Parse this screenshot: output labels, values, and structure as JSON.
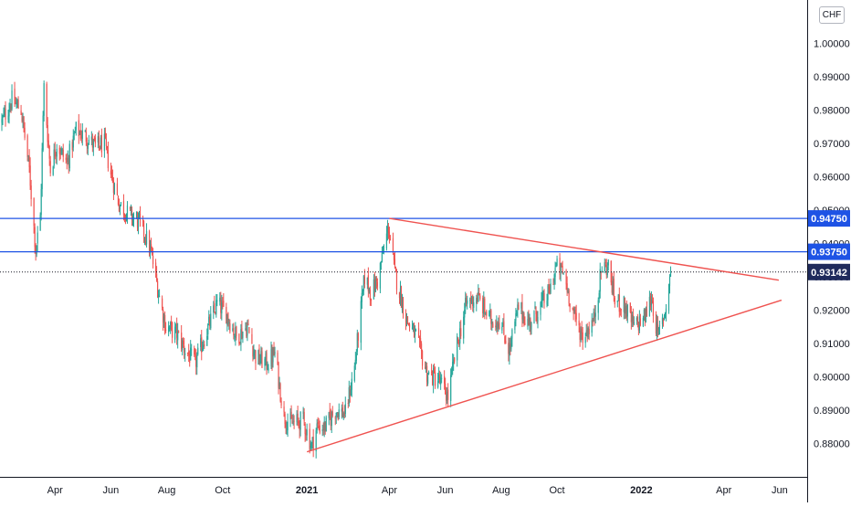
{
  "currency": "CHF",
  "chart_data": {
    "type": "candlestick",
    "y_axis": {
      "range": [
        0.87,
        1.013
      ],
      "ticks": [
        "0.88000",
        "0.89000",
        "0.90000",
        "0.91000",
        "0.92000",
        "0.93000",
        "0.94000",
        "0.95000",
        "0.96000",
        "0.97000",
        "0.98000",
        "0.99000",
        "1.00000"
      ]
    },
    "x_axis": {
      "range": [
        "2020-02-01",
        "2022-07-01"
      ],
      "ticks": [
        {
          "label": "Apr",
          "date": "2020-04-01",
          "bold": false
        },
        {
          "label": "Jun",
          "date": "2020-06-01",
          "bold": false
        },
        {
          "label": "Aug",
          "date": "2020-08-01",
          "bold": false
        },
        {
          "label": "Oct",
          "date": "2020-10-01",
          "bold": false
        },
        {
          "label": "2021",
          "date": "2021-01-01",
          "bold": true
        },
        {
          "label": "Apr",
          "date": "2021-04-01",
          "bold": false
        },
        {
          "label": "Jun",
          "date": "2021-06-01",
          "bold": false
        },
        {
          "label": "Aug",
          "date": "2021-08-01",
          "bold": false
        },
        {
          "label": "Oct",
          "date": "2021-10-01",
          "bold": false
        },
        {
          "label": "2022",
          "date": "2022-01-01",
          "bold": true
        },
        {
          "label": "Apr",
          "date": "2022-04-01",
          "bold": false
        },
        {
          "label": "Jun",
          "date": "2022-06-01",
          "bold": false
        }
      ]
    },
    "close_path": [
      [
        "2020-02-03",
        0.9765
      ],
      [
        "2020-02-14",
        0.983
      ],
      [
        "2020-02-24",
        0.98
      ],
      [
        "2020-03-04",
        0.962
      ],
      [
        "2020-03-11",
        0.938
      ],
      [
        "2020-03-16",
        0.948
      ],
      [
        "2020-03-20",
        0.987
      ],
      [
        "2020-03-27",
        0.962
      ],
      [
        "2020-04-03",
        0.97
      ],
      [
        "2020-04-14",
        0.964
      ],
      [
        "2020-04-24",
        0.974
      ],
      [
        "2020-05-05",
        0.972
      ],
      [
        "2020-05-15",
        0.969
      ],
      [
        "2020-05-25",
        0.97
      ],
      [
        "2020-06-01",
        0.961
      ],
      [
        "2020-06-10",
        0.952
      ],
      [
        "2020-06-19",
        0.949
      ],
      [
        "2020-06-30",
        0.947
      ],
      [
        "2020-07-08",
        0.943
      ],
      [
        "2020-07-15",
        0.937
      ],
      [
        "2020-07-24",
        0.924
      ],
      [
        "2020-07-31",
        0.915
      ],
      [
        "2020-08-12",
        0.913
      ],
      [
        "2020-08-21",
        0.908
      ],
      [
        "2020-09-01",
        0.904
      ],
      [
        "2020-09-10",
        0.911
      ],
      [
        "2020-09-25",
        0.922
      ],
      [
        "2020-10-05",
        0.919
      ],
      [
        "2020-10-16",
        0.912
      ],
      [
        "2020-10-28",
        0.915
      ],
      [
        "2020-11-06",
        0.906
      ],
      [
        "2020-11-18",
        0.904
      ],
      [
        "2020-11-27",
        0.907
      ],
      [
        "2020-12-07",
        0.888
      ],
      [
        "2020-12-15",
        0.886
      ],
      [
        "2020-12-28",
        0.887
      ],
      [
        "2021-01-06",
        0.879
      ],
      [
        "2021-01-12",
        0.885
      ],
      [
        "2021-01-21",
        0.885
      ],
      [
        "2021-02-01",
        0.89
      ],
      [
        "2021-02-12",
        0.889
      ],
      [
        "2021-02-22",
        0.903
      ],
      [
        "2021-03-05",
        0.93
      ],
      [
        "2021-03-12",
        0.925
      ],
      [
        "2021-03-19",
        0.929
      ],
      [
        "2021-03-31",
        0.945
      ],
      [
        "2021-04-07",
        0.931
      ],
      [
        "2021-04-20",
        0.917
      ],
      [
        "2021-04-30",
        0.912
      ],
      [
        "2021-05-12",
        0.901
      ],
      [
        "2021-05-25",
        0.899
      ],
      [
        "2021-06-04",
        0.894
      ],
      [
        "2021-06-12",
        0.907
      ],
      [
        "2021-06-24",
        0.922
      ],
      [
        "2021-07-06",
        0.924
      ],
      [
        "2021-07-20",
        0.917
      ],
      [
        "2021-07-30",
        0.917
      ],
      [
        "2021-08-10",
        0.908
      ],
      [
        "2021-08-20",
        0.921
      ],
      [
        "2021-08-31",
        0.916
      ],
      [
        "2021-09-10",
        0.92
      ],
      [
        "2021-09-22",
        0.925
      ],
      [
        "2021-09-30",
        0.933
      ],
      [
        "2021-10-08",
        0.931
      ],
      [
        "2021-10-20",
        0.918
      ],
      [
        "2021-10-29",
        0.912
      ],
      [
        "2021-11-10",
        0.917
      ],
      [
        "2021-11-19",
        0.933
      ],
      [
        "2021-11-26",
        0.933
      ],
      [
        "2021-12-03",
        0.923
      ],
      [
        "2021-12-14",
        0.921
      ],
      [
        "2021-12-24",
        0.915
      ],
      [
        "2022-01-05",
        0.918
      ],
      [
        "2022-01-12",
        0.924
      ],
      [
        "2022-01-19",
        0.912
      ],
      [
        "2022-01-27",
        0.92
      ],
      [
        "2022-02-02",
        0.9314
      ]
    ],
    "last_price": {
      "value": "0.93142",
      "y": 0.93142
    },
    "horizontal_levels": [
      {
        "label": "0.94750",
        "y": 0.9475
      },
      {
        "label": "0.93750",
        "y": 0.9375
      }
    ],
    "trendlines": [
      {
        "name": "resistance",
        "from": [
          "2021-04-01",
          0.9475
        ],
        "to": [
          "2022-05-31",
          0.929
        ]
      },
      {
        "name": "support",
        "from": [
          "2021-01-01",
          0.8775
        ],
        "to": [
          "2022-06-03",
          0.923
        ]
      }
    ],
    "colors": {
      "up": "#26a69a",
      "down": "#ef5350",
      "level_line": "#1e53e5",
      "level_label_bg": "#1e53e5",
      "last_price_bg": "#1f2a5c",
      "trendline": "#ef5350",
      "last_price_line": "#131722"
    }
  }
}
